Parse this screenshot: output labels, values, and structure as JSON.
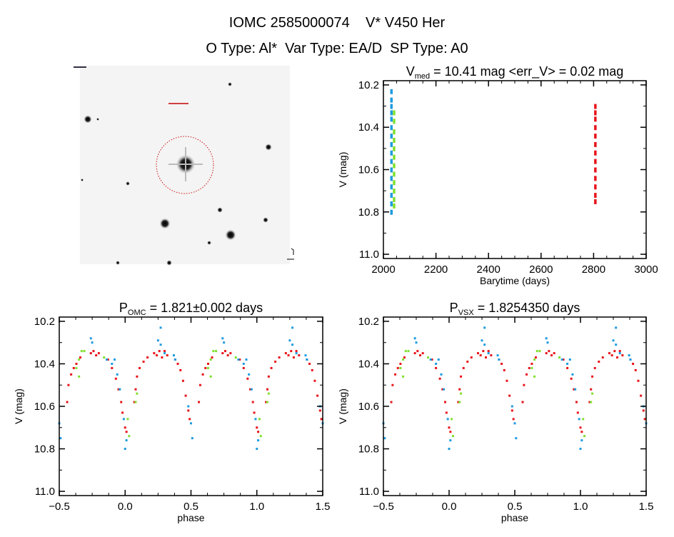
{
  "header": {
    "title": "IOMC 2585000074    V* V450 Her",
    "subtitle": "O Type: Al*  Var Type: EA/D  SP Type: A0"
  },
  "colors": {
    "red": "#e8141a",
    "blue": "#1e9be0",
    "green": "#80e030",
    "darkred": "#a01010"
  },
  "chart_data": [
    {
      "type": "scatter",
      "id": "timeseries",
      "title_main": "V",
      "title_sub": "med",
      "title_rest": " = 10.41 mag <err_V> = 0.02 mag",
      "xlabel": "Barytime (days)",
      "ylabel": "V (mag)",
      "xlim": [
        2000,
        3000
      ],
      "ylim": [
        10.18,
        11.02
      ],
      "y_inverted": true,
      "xticks": [
        2000,
        2200,
        2400,
        2600,
        2800,
        3000
      ],
      "yticks": [
        "10.2",
        "10.4",
        "10.6",
        "10.8",
        "11.0"
      ],
      "series": [
        {
          "name": "blue",
          "color": "#1e9be0",
          "x": 2030,
          "v": [
            10.23,
            10.27,
            10.3,
            10.33,
            10.36,
            10.4,
            10.44,
            10.48,
            10.52,
            10.56,
            10.6,
            10.64,
            10.68,
            10.72,
            10.76,
            10.8
          ]
        },
        {
          "name": "green",
          "color": "#80e030",
          "x": 2040,
          "v": [
            10.33,
            10.37,
            10.42,
            10.46,
            10.5,
            10.54,
            10.58,
            10.62,
            10.66,
            10.7,
            10.74,
            10.77
          ]
        },
        {
          "name": "red",
          "color": "#e8141a",
          "x": 2806,
          "v": [
            10.3,
            10.33,
            10.36,
            10.4,
            10.44,
            10.48,
            10.52,
            10.56,
            10.6,
            10.64,
            10.68,
            10.72,
            10.75
          ]
        }
      ]
    },
    {
      "type": "scatter",
      "id": "phase-omc",
      "title_main": "P",
      "title_sub": "OMC",
      "title_rest": " = 1.821±0.002 days",
      "xlabel": "phase",
      "ylabel": "V (mag)",
      "xlim": [
        -0.5,
        1.5
      ],
      "ylim": [
        10.18,
        11.02
      ],
      "y_inverted": true,
      "xticks": [
        "-0.5",
        "0.0",
        "0.5",
        "1.0",
        "1.5"
      ],
      "yticks": [
        "10.2",
        "10.4",
        "10.6",
        "10.8",
        "11.0"
      ],
      "series_ref": "phase_series"
    },
    {
      "type": "scatter",
      "id": "phase-vsx",
      "title_main": "P",
      "title_sub": "VSX",
      "title_rest": " = 1.8254350 days",
      "xlabel": "phase",
      "ylabel": "V (mag)",
      "xlim": [
        -0.5,
        1.5
      ],
      "ylim": [
        10.18,
        11.02
      ],
      "y_inverted": true,
      "xticks": [
        "-0.5",
        "0.0",
        "0.5",
        "1.0",
        "1.5"
      ],
      "yticks": [
        "10.2",
        "10.4",
        "10.6",
        "10.8",
        "11.0"
      ],
      "series_ref": "phase_series"
    }
  ],
  "phase_series": [
    {
      "name": "red",
      "color": "#e8141a",
      "points": [
        [
          0.0,
          10.7
        ],
        [
          0.01,
          10.72
        ],
        [
          0.07,
          10.58
        ],
        [
          0.08,
          10.52
        ],
        [
          0.09,
          10.46
        ],
        [
          0.11,
          10.42
        ],
        [
          0.14,
          10.39
        ],
        [
          0.17,
          10.37
        ],
        [
          0.22,
          10.35
        ],
        [
          0.24,
          10.36
        ],
        [
          0.26,
          10.34
        ],
        [
          0.28,
          10.37
        ],
        [
          0.3,
          10.34
        ],
        [
          0.32,
          10.36
        ],
        [
          0.38,
          10.38
        ],
        [
          0.4,
          10.4
        ],
        [
          0.42,
          10.43
        ],
        [
          0.44,
          10.48
        ],
        [
          0.46,
          10.55
        ],
        [
          0.48,
          10.62
        ],
        [
          0.49,
          10.66
        ],
        [
          0.56,
          10.58
        ],
        [
          0.57,
          10.5
        ],
        [
          0.59,
          10.45
        ],
        [
          0.61,
          10.42
        ],
        [
          0.63,
          10.4
        ],
        [
          0.66,
          10.37
        ],
        [
          0.74,
          10.35
        ],
        [
          0.76,
          10.34
        ],
        [
          0.78,
          10.36
        ],
        [
          0.8,
          10.35
        ],
        [
          0.87,
          10.38
        ],
        [
          0.9,
          10.42
        ],
        [
          0.93,
          10.47
        ],
        [
          0.95,
          10.52
        ],
        [
          0.97,
          10.58
        ],
        [
          0.98,
          10.63
        ]
      ]
    },
    {
      "name": "blue",
      "color": "#1e9be0",
      "points": [
        [
          0.74,
          10.28
        ],
        [
          0.75,
          10.3
        ],
        [
          0.86,
          10.38
        ],
        [
          0.9,
          10.4
        ],
        [
          0.92,
          10.38
        ],
        [
          0.94,
          10.45
        ],
        [
          0.96,
          10.52
        ],
        [
          0.99,
          10.66
        ],
        [
          0.0,
          10.8
        ],
        [
          0.01,
          10.76
        ],
        [
          0.25,
          10.29
        ],
        [
          0.27,
          10.31
        ],
        [
          0.3,
          10.35
        ],
        [
          0.37,
          10.36
        ],
        [
          0.38,
          10.38
        ],
        [
          0.48,
          10.6
        ],
        [
          0.5,
          10.68
        ],
        [
          0.51,
          10.75
        ],
        [
          0.27,
          10.23
        ]
      ]
    },
    {
      "name": "green",
      "color": "#80e030",
      "points": [
        [
          0.63,
          10.42
        ],
        [
          0.65,
          10.38
        ],
        [
          0.67,
          10.34
        ],
        [
          0.69,
          10.34
        ],
        [
          0.84,
          10.37
        ],
        [
          0.02,
          10.66
        ],
        [
          0.03,
          10.74
        ],
        [
          0.08,
          10.58
        ],
        [
          0.09,
          10.54
        ],
        [
          0.65,
          10.46
        ]
      ]
    }
  ]
}
